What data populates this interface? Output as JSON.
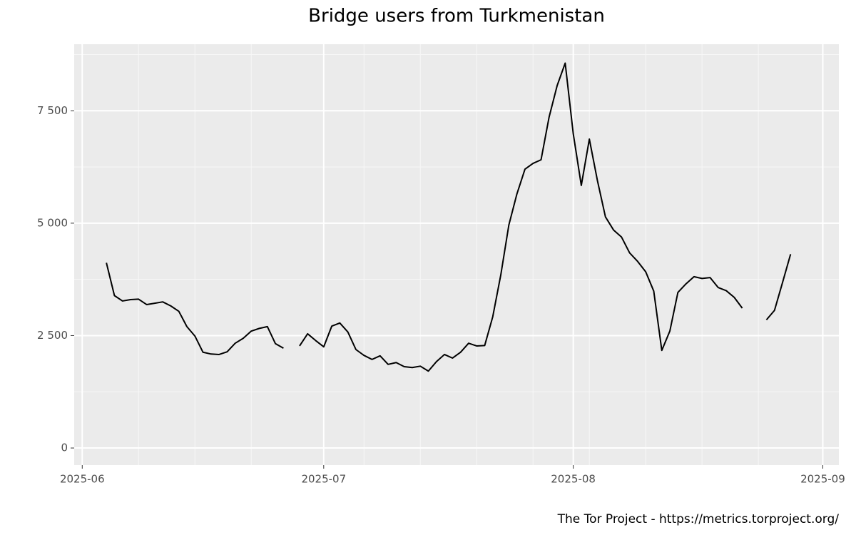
{
  "chart_data": {
    "type": "line",
    "title": "Bridge users from Turkmenistan",
    "caption": "The Tor Project - https://metrics.torproject.org/",
    "color": "#000000",
    "grid": true,
    "x": [
      "2025-06-04",
      "2025-06-05",
      "2025-06-06",
      "2025-06-07",
      "2025-06-08",
      "2025-06-09",
      "2025-06-10",
      "2025-06-11",
      "2025-06-12",
      "2025-06-13",
      "2025-06-14",
      "2025-06-15",
      "2025-06-16",
      "2025-06-17",
      "2025-06-18",
      "2025-06-19",
      "2025-06-20",
      "2025-06-21",
      "2025-06-22",
      "2025-06-23",
      "2025-06-24",
      "2025-06-25",
      "2025-06-26",
      "2025-06-27",
      "2025-06-28",
      "2025-06-29",
      "2025-06-30",
      "2025-07-01",
      "2025-07-02",
      "2025-07-03",
      "2025-07-04",
      "2025-07-05",
      "2025-07-06",
      "2025-07-07",
      "2025-07-08",
      "2025-07-09",
      "2025-07-10",
      "2025-07-11",
      "2025-07-12",
      "2025-07-13",
      "2025-07-14",
      "2025-07-15",
      "2025-07-16",
      "2025-07-17",
      "2025-07-18",
      "2025-07-19",
      "2025-07-20",
      "2025-07-21",
      "2025-07-22",
      "2025-07-23",
      "2025-07-24",
      "2025-07-25",
      "2025-07-26",
      "2025-07-27",
      "2025-07-28",
      "2025-07-29",
      "2025-07-30",
      "2025-07-31",
      "2025-08-01",
      "2025-08-02",
      "2025-08-03",
      "2025-08-04",
      "2025-08-05",
      "2025-08-06",
      "2025-08-07",
      "2025-08-08",
      "2025-08-09",
      "2025-08-10",
      "2025-08-11",
      "2025-08-12",
      "2025-08-13",
      "2025-08-14",
      "2025-08-15",
      "2025-08-16",
      "2025-08-17",
      "2025-08-18",
      "2025-08-19",
      "2025-08-20",
      "2025-08-21",
      "2025-08-22",
      "2025-08-23",
      "2025-08-24",
      "2025-08-25",
      "2025-08-26",
      "2025-08-27",
      "2025-08-28"
    ],
    "values": [
      4120,
      3390,
      3270,
      3300,
      3310,
      3190,
      3220,
      3250,
      3160,
      3040,
      2700,
      2490,
      2130,
      2090,
      2080,
      2140,
      2330,
      2440,
      2600,
      2660,
      2700,
      2320,
      2220,
      null,
      2270,
      2540,
      2390,
      2250,
      2710,
      2780,
      2580,
      2190,
      2060,
      1970,
      2050,
      1860,
      1900,
      1810,
      1790,
      1820,
      1710,
      1920,
      2080,
      2000,
      2130,
      2330,
      2270,
      2280,
      2920,
      3850,
      4960,
      5650,
      6200,
      6330,
      6410,
      7360,
      8060,
      8560,
      6990,
      5840,
      6870,
      5950,
      5140,
      4850,
      4690,
      4340,
      4150,
      3920,
      3490,
      2170,
      2600,
      3460,
      3650,
      3810,
      3770,
      3790,
      3570,
      3500,
      3350,
      3110,
      null,
      null,
      2850,
      3060,
      3680,
      4310
    ],
    "xlim": [
      "2025-05-31",
      "2025-09-03"
    ],
    "xticks": [
      {
        "value": "2025-06-01",
        "label": "2025-06"
      },
      {
        "value": "2025-07-01",
        "label": "2025-07"
      },
      {
        "value": "2025-08-01",
        "label": "2025-08"
      },
      {
        "value": "2025-09-01",
        "label": "2025-09"
      }
    ],
    "x_minor_ticks": [
      "2025-06-08",
      "2025-06-15",
      "2025-06-22",
      "2025-07-06",
      "2025-07-13",
      "2025-07-20",
      "2025-07-27",
      "2025-08-03",
      "2025-08-10",
      "2025-08-17",
      "2025-08-24"
    ],
    "ylim": [
      -380,
      8980
    ],
    "yticks": [
      0,
      {
        "value": 2500,
        "label": "2 500"
      },
      {
        "value": 5000,
        "label": "5 000"
      },
      {
        "value": 7500,
        "label": "7 500"
      }
    ],
    "y_minor_ticks": [
      1250,
      3750,
      6250,
      8750
    ]
  }
}
